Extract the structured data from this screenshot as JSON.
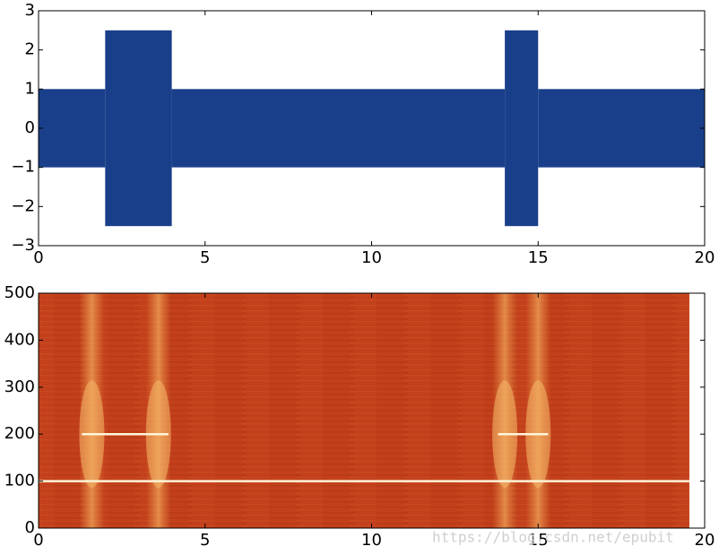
{
  "chart_data": [
    {
      "type": "band",
      "color": "#1a3f8a",
      "segments": [
        {
          "x": [
            0,
            2
          ],
          "upper": 1,
          "lower": -1
        },
        {
          "x": [
            2,
            4
          ],
          "upper": 2.5,
          "lower": -2.5
        },
        {
          "x": [
            4,
            14
          ],
          "upper": 1,
          "lower": -1
        },
        {
          "x": [
            14,
            15
          ],
          "upper": 2.5,
          "lower": -2.5
        },
        {
          "x": [
            15,
            20
          ],
          "upper": 1,
          "lower": -1
        }
      ],
      "xlim": [
        0,
        20
      ],
      "ylim": [
        -3,
        3
      ],
      "xticks": [
        0,
        5,
        10,
        15,
        20
      ],
      "yticks": [
        {
          "value": -3,
          "label": "−3"
        },
        {
          "value": -2,
          "label": "−2"
        },
        {
          "value": -1,
          "label": "−1"
        },
        0,
        1,
        2,
        3
      ]
    },
    {
      "type": "spectrogram",
      "color": "#c2401b",
      "extent": [
        0,
        19.54
      ],
      "tones": [
        {
          "freq": 100,
          "x": [
            0,
            19.54
          ]
        },
        {
          "freq": 200,
          "x": [
            1.3,
            3.9
          ]
        },
        {
          "freq": 200,
          "x": [
            13.8,
            15.3
          ]
        }
      ],
      "bursts": [
        1.6,
        3.6,
        14.0,
        15.0
      ],
      "xlim": [
        0,
        20
      ],
      "ylim": [
        0,
        500
      ],
      "xticks": [
        0,
        5,
        10,
        15,
        20
      ],
      "yticks": [
        0,
        100,
        200,
        300,
        400,
        500
      ]
    }
  ],
  "watermark": "https://blog.csdn.net/epubit"
}
